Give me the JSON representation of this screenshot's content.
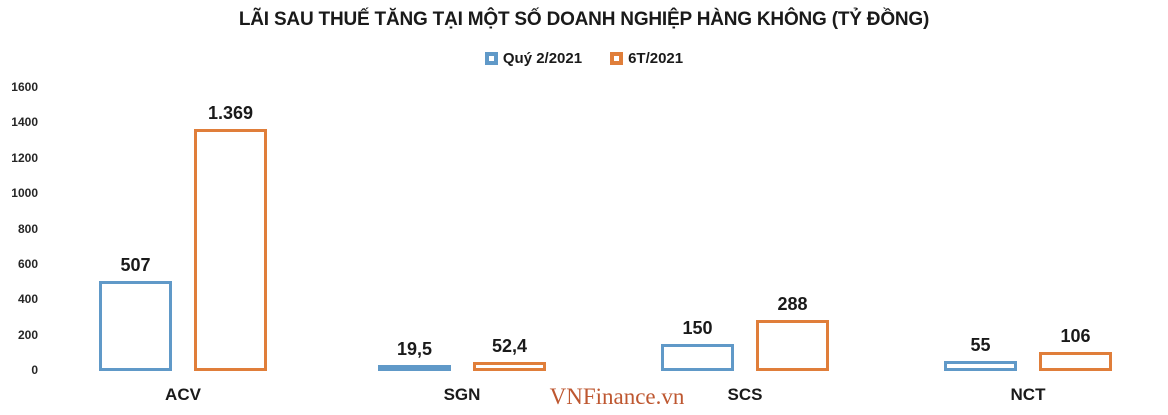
{
  "chart_data": {
    "type": "bar",
    "title": "LÃI SAU THUẾ TĂNG TẠI MỘT SỐ DOANH NGHIỆP HÀNG KHÔNG (TỶ ĐỒNG)",
    "categories": [
      "ACV",
      "SGN",
      "SCS",
      "NCT"
    ],
    "series": [
      {
        "name": "Quý 2/2021",
        "color": "#6099C8",
        "values": [
          507,
          19.5,
          150,
          55
        ],
        "labels": [
          "507",
          "19,5",
          "150",
          "55"
        ]
      },
      {
        "name": "6T/2021",
        "color": "#E07E3A",
        "values": [
          1369,
          52.4,
          288,
          106
        ],
        "labels": [
          "1.369",
          "52,4",
          "288",
          "106"
        ]
      }
    ],
    "xlabel": "",
    "ylabel": "",
    "ylim": [
      0,
      1600
    ],
    "yticks": [
      0,
      200,
      400,
      600,
      800,
      1000,
      1200,
      1400,
      1600
    ],
    "grid": false,
    "legend_position": "top",
    "bar_style": "outlined-white-fill",
    "watermark": "VNFinance.vn",
    "watermark_color": "#BE5730",
    "text_color": "#1A1A1A"
  }
}
